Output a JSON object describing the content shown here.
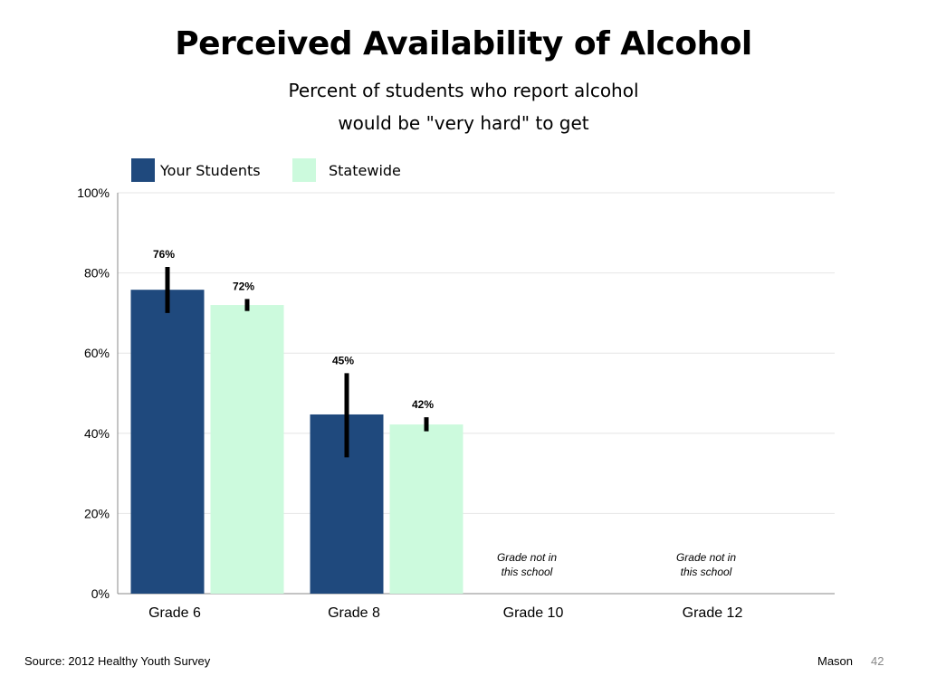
{
  "slide": {
    "title": "Perceived Availability of Alcohol",
    "subtitle_line1": "Percent of students who report alcohol",
    "subtitle_line2": "would be \"very hard\" to get",
    "footer_source": "Source: 2012 Healthy Youth Survey",
    "footer_name": "Mason",
    "page_number": "42"
  },
  "legend": {
    "your_students": "Your Students",
    "statewide": "Statewide"
  },
  "colors": {
    "your_students": "#1f497d",
    "statewide": "#ccfadd",
    "grid": "#e6e6e6",
    "axis": "#888888",
    "error_bar": "#000000"
  },
  "chart_data": {
    "type": "bar",
    "categories": [
      "Grade 6",
      "Grade 8",
      "Grade 10",
      "Grade 12"
    ],
    "series": [
      {
        "name": "Your Students",
        "values": [
          75.8,
          44.7,
          null,
          null
        ],
        "labels": [
          "76%",
          "45%",
          "",
          ""
        ],
        "error_low": [
          70,
          34,
          null,
          null
        ],
        "error_high": [
          81.5,
          55,
          null,
          null
        ]
      },
      {
        "name": "Statewide",
        "values": [
          72,
          42.2,
          null,
          null
        ],
        "labels": [
          "72%",
          "42%",
          "",
          ""
        ],
        "error_low": [
          70.5,
          40.5,
          null,
          null
        ],
        "error_high": [
          73.5,
          44,
          null,
          null
        ]
      }
    ],
    "notes": [
      "",
      "",
      "Grade not in this school",
      "Grade not in this school"
    ],
    "ylim": [
      0,
      100
    ],
    "yticks": [
      0,
      20,
      40,
      60,
      80,
      100
    ],
    "ytick_labels": [
      "0%",
      "20%",
      "40%",
      "60%",
      "80%",
      "100%"
    ],
    "xlabel": "",
    "ylabel": "",
    "grid": true,
    "legend_position": "top-left"
  }
}
